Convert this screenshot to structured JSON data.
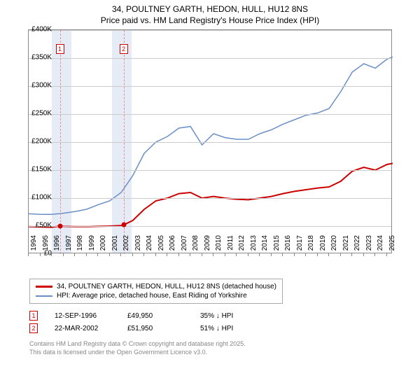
{
  "title": "34, POULTNEY GARTH, HEDON, HULL, HU12 8NS",
  "subtitle": "Price paid vs. HM Land Registry's House Price Index (HPI)",
  "chart": {
    "type": "line",
    "xlim": [
      1994,
      2025.5
    ],
    "ylim": [
      0,
      400000
    ],
    "ytick_step": 50000,
    "yticks": [
      "£0",
      "£50K",
      "£100K",
      "£150K",
      "£200K",
      "£250K",
      "£300K",
      "£350K",
      "£400K"
    ],
    "xticks": [
      1994,
      1995,
      1996,
      1997,
      1998,
      1999,
      2000,
      2001,
      2002,
      2003,
      2004,
      2005,
      2006,
      2007,
      2008,
      2009,
      2010,
      2011,
      2012,
      2013,
      2014,
      2015,
      2016,
      2017,
      2018,
      2019,
      2020,
      2021,
      2022,
      2023,
      2024,
      2025
    ],
    "grid_color": "#cccccc",
    "border_color": "#888888",
    "band_color": "#e6ecf5",
    "bands": [
      {
        "start": 1996.0,
        "end": 1997.7
      },
      {
        "start": 2001.2,
        "end": 2002.9
      }
    ],
    "series": [
      {
        "name": "property",
        "label": "34, POULTNEY GARTH, HEDON, HULL, HU12 8NS (detached house)",
        "color": "#cc0000",
        "width": 2,
        "points": [
          [
            1994,
            49000
          ],
          [
            1995,
            48500
          ],
          [
            1996,
            48000
          ],
          [
            1996.7,
            49950
          ],
          [
            1997,
            49500
          ],
          [
            1998,
            49000
          ],
          [
            1999,
            49000
          ],
          [
            2000,
            49500
          ],
          [
            2001,
            50000
          ],
          [
            2002,
            51000
          ],
          [
            2002.2,
            51950
          ],
          [
            2003,
            60000
          ],
          [
            2004,
            80000
          ],
          [
            2005,
            95000
          ],
          [
            2006,
            100000
          ],
          [
            2007,
            108000
          ],
          [
            2008,
            110000
          ],
          [
            2009,
            100000
          ],
          [
            2010,
            103000
          ],
          [
            2011,
            100000
          ],
          [
            2012,
            98000
          ],
          [
            2013,
            97000
          ],
          [
            2014,
            100000
          ],
          [
            2015,
            103000
          ],
          [
            2016,
            108000
          ],
          [
            2017,
            112000
          ],
          [
            2018,
            115000
          ],
          [
            2019,
            118000
          ],
          [
            2020,
            120000
          ],
          [
            2021,
            130000
          ],
          [
            2022,
            148000
          ],
          [
            2023,
            155000
          ],
          [
            2024,
            150000
          ],
          [
            2025,
            160000
          ],
          [
            2025.5,
            162000
          ]
        ]
      },
      {
        "name": "hpi",
        "label": "HPI: Average price, detached house, East Riding of Yorkshire",
        "color": "#6a8fc7",
        "width": 1.5,
        "points": [
          [
            1994,
            72000
          ],
          [
            1995,
            71000
          ],
          [
            1996,
            71000
          ],
          [
            1997,
            73000
          ],
          [
            1998,
            76000
          ],
          [
            1999,
            80000
          ],
          [
            2000,
            88000
          ],
          [
            2001,
            95000
          ],
          [
            2002,
            110000
          ],
          [
            2003,
            140000
          ],
          [
            2004,
            180000
          ],
          [
            2005,
            200000
          ],
          [
            2006,
            210000
          ],
          [
            2007,
            225000
          ],
          [
            2008,
            228000
          ],
          [
            2009,
            195000
          ],
          [
            2010,
            215000
          ],
          [
            2011,
            208000
          ],
          [
            2012,
            205000
          ],
          [
            2013,
            205000
          ],
          [
            2014,
            215000
          ],
          [
            2015,
            222000
          ],
          [
            2016,
            232000
          ],
          [
            2017,
            240000
          ],
          [
            2018,
            248000
          ],
          [
            2019,
            252000
          ],
          [
            2020,
            260000
          ],
          [
            2021,
            290000
          ],
          [
            2022,
            325000
          ],
          [
            2023,
            340000
          ],
          [
            2024,
            332000
          ],
          [
            2025,
            348000
          ],
          [
            2025.5,
            352000
          ]
        ]
      }
    ],
    "markers": [
      {
        "num": "1",
        "x": 1996.7,
        "y": 49950
      },
      {
        "num": "2",
        "x": 2002.22,
        "y": 51950
      }
    ]
  },
  "legend": {
    "items": [
      {
        "color": "#cc0000",
        "width": 3,
        "label": "34, POULTNEY GARTH, HEDON, HULL, HU12 8NS (detached house)"
      },
      {
        "color": "#6a8fc7",
        "width": 2,
        "label": "HPI: Average price, detached house, East Riding of Yorkshire"
      }
    ]
  },
  "sales": [
    {
      "num": "1",
      "date": "12-SEP-1996",
      "price": "£49,950",
      "delta": "35% ↓ HPI"
    },
    {
      "num": "2",
      "date": "22-MAR-2002",
      "price": "£51,950",
      "delta": "51% ↓ HPI"
    }
  ],
  "footer": {
    "line1": "Contains HM Land Registry data © Crown copyright and database right 2025.",
    "line2": "This data is licensed under the Open Government Licence v3.0."
  }
}
